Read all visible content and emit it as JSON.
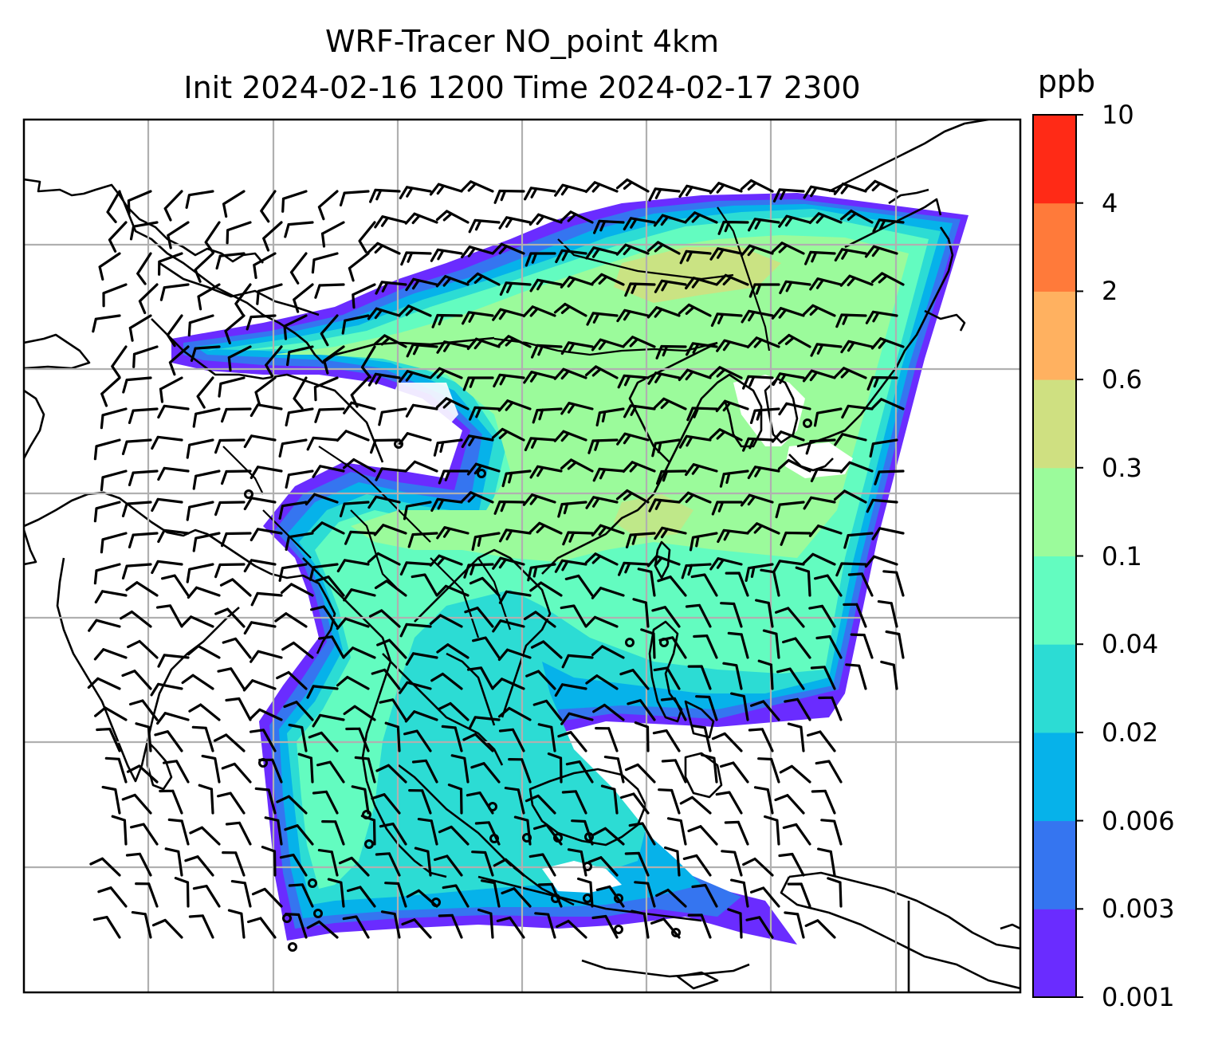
{
  "title": {
    "line1": "WRF-Tracer NO_point 4km",
    "line2": "Init 2024-02-16 1200 Time 2024-02-17 2300"
  },
  "colorbar": {
    "unit": "ppb",
    "labels": [
      "10",
      "4",
      "2",
      "0.6",
      "0.3",
      "0.1",
      "0.04",
      "0.02",
      "0.006",
      "0.003",
      "0.001"
    ],
    "colors": [
      "#6a2cff",
      "#3575f0",
      "#06b2ea",
      "#2cdcd4",
      "#63fcc0",
      "#9bfb9b",
      "#cfe081",
      "#ffb160",
      "#ff7a3a",
      "#ff2a16"
    ]
  },
  "map": {
    "field": "NO_point tracer concentration",
    "grid": "on",
    "overlays": [
      "coastlines",
      "country borders",
      "wind barbs",
      "calm circles"
    ]
  }
}
